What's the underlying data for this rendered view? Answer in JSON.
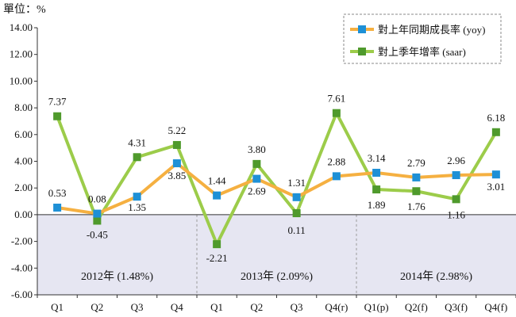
{
  "chart_data": {
    "type": "line",
    "unit_label": "單位：%",
    "categories": [
      "Q1",
      "Q2",
      "Q3",
      "Q4",
      "Q1",
      "Q2",
      "Q3",
      "Q4(r)",
      "Q1(p)",
      "Q2(f)",
      "Q3(f)",
      "Q4(f)"
    ],
    "ylim": [
      -6,
      14
    ],
    "yticks": [
      "14.00",
      "12.00",
      "10.00",
      "8.00",
      "6.00",
      "4.00",
      "2.00",
      "0.00",
      "-2.00",
      "-4.00",
      "-6.00"
    ],
    "ytick_values": [
      14,
      12,
      10,
      8,
      6,
      4,
      2,
      0,
      -2,
      -4,
      -6
    ],
    "negative_region_color": "#e6e6f2",
    "series": [
      {
        "name": "對上年同期成長率 (yoy)",
        "line_color": "#f5b041",
        "marker_color": "#1e90d6",
        "values": [
          0.53,
          0.08,
          1.35,
          3.85,
          1.44,
          2.69,
          1.31,
          2.88,
          3.14,
          2.79,
          2.96,
          3.01
        ],
        "labels": [
          "0.53",
          "0.08",
          "1.35",
          "3.85",
          "1.44",
          "2.69",
          "1.31",
          "2.88",
          "3.14",
          "2.79",
          "2.96",
          "3.01"
        ]
      },
      {
        "name": "對上季年增率 (saar)",
        "line_color": "#9ccc4a",
        "marker_color": "#4f9a2c",
        "values": [
          7.37,
          -0.45,
          4.31,
          5.22,
          -2.21,
          3.8,
          0.11,
          7.61,
          1.89,
          1.76,
          1.16,
          6.18
        ],
        "labels": [
          "7.37",
          "-0.45",
          "4.31",
          "5.22",
          "-2.21",
          "3.80",
          "0.11",
          "7.61",
          "1.89",
          "1.76",
          "1.16",
          "6.18"
        ]
      }
    ],
    "year_groups": [
      {
        "label": "2012年 (1.48%)",
        "start": 0,
        "end": 3
      },
      {
        "label": "2013年 (2.09%)",
        "start": 4,
        "end": 7
      },
      {
        "label": "2014年 (2.98%)",
        "start": 8,
        "end": 11
      }
    ],
    "legend_position": "top-right",
    "grid": false
  }
}
